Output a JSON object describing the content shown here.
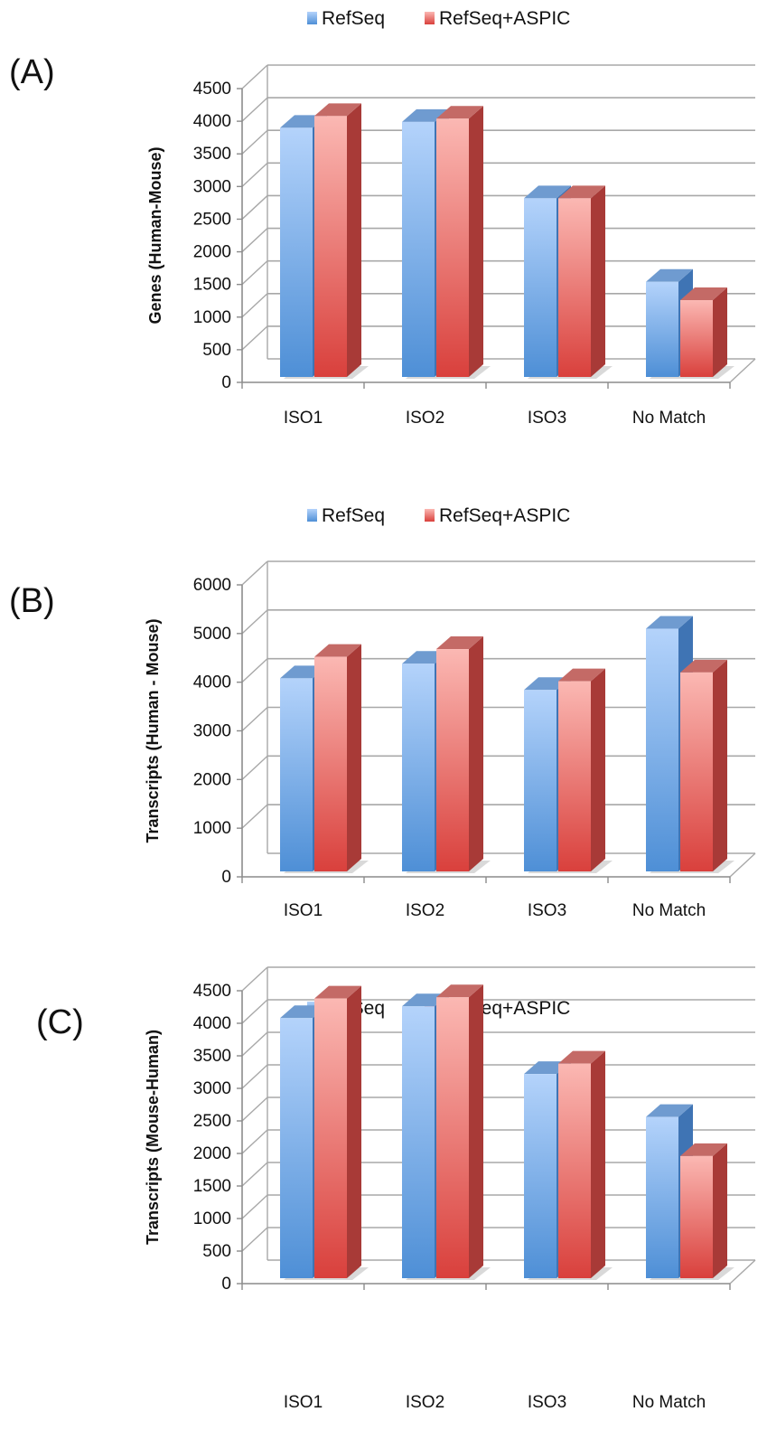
{
  "chart_data": [
    {
      "type": "bar",
      "panel_label": "(A)",
      "categories": [
        "ISO1",
        "ISO2",
        "ISO3",
        "No Match"
      ],
      "series": [
        {
          "name": "RefSeq",
          "values": [
            3900,
            3990,
            2820,
            1540
          ]
        },
        {
          "name": "RefSeq+ASPIC",
          "values": [
            4080,
            4040,
            2820,
            1260
          ]
        }
      ],
      "ylabel": "Genes (Human-Mouse)",
      "ylim": [
        0,
        4500
      ],
      "yticks": [
        "0",
        "500",
        "1000",
        "1500",
        "2000",
        "2500",
        "3000",
        "3500",
        "4000",
        "4500"
      ],
      "grid": true,
      "legend_position": "top",
      "style": "3d-column"
    },
    {
      "type": "bar",
      "panel_label": "(B)",
      "categories": [
        "ISO1",
        "ISO2",
        "ISO3",
        "No Match"
      ],
      "series": [
        {
          "name": "RefSeq",
          "values": [
            4080,
            4380,
            3840,
            5100
          ]
        },
        {
          "name": "RefSeq+ASPIC",
          "values": [
            4520,
            4680,
            4020,
            4200
          ]
        }
      ],
      "ylabel": "Transcripts (Human - Mouse)",
      "ylim": [
        0,
        6000
      ],
      "yticks": [
        "0",
        "1000",
        "2000",
        "3000",
        "4000",
        "5000",
        "6000"
      ],
      "grid": true,
      "legend_position": "top",
      "style": "3d-column"
    },
    {
      "type": "bar",
      "panel_label": "(C)",
      "categories": [
        "ISO1",
        "ISO2",
        "ISO3",
        "No Match"
      ],
      "series": [
        {
          "name": "RefSeq",
          "values": [
            4080,
            4260,
            3220,
            2560
          ]
        },
        {
          "name": "RefSeq+ASPIC",
          "values": [
            4380,
            4400,
            3380,
            1960
          ]
        }
      ],
      "ylabel": "Transcripts (Mouse-Human)",
      "ylim": [
        0,
        4500
      ],
      "yticks": [
        "0",
        "500",
        "1000",
        "1500",
        "2000",
        "2500",
        "3000",
        "3500",
        "4000",
        "4500"
      ],
      "grid": true,
      "legend_position": "top",
      "style": "3d-column"
    }
  ],
  "colors": {
    "refseq_front_top": "#b4d3fb",
    "refseq_front_bottom": "#4e8fd6",
    "refseq_side": "#3f74b4",
    "refseq_top": "#6f9bd0",
    "aspic_front_top": "#fbb8b3",
    "aspic_front_bottom": "#d9403c",
    "aspic_side": "#a83a37",
    "aspic_top": "#c46a66",
    "grid": "#a8a8a8",
    "axis": "#8c8c8c"
  }
}
